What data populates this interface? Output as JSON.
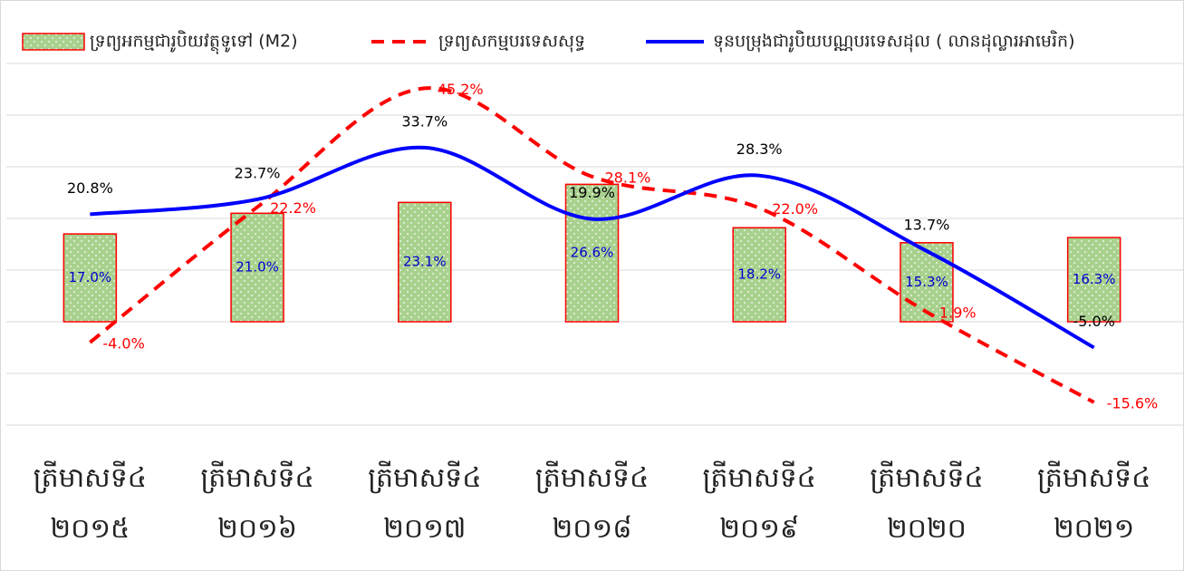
{
  "chart_data": {
    "type": "bar-line",
    "categories": [
      "ត្រីមាសទី៤ ២០១៥",
      "ត្រីមាសទី៤ ២០១៦",
      "ត្រីមាសទី៤ ២០១៧",
      "ត្រីមាសទី៤ ២០១៨",
      "ត្រីមាសទី៤ ២០១៩",
      "ត្រីមាសទី៤ ២០២០",
      "ត្រីមាសទី៤ ២០២១"
    ],
    "series": [
      {
        "name": "ទ្រព្យអកម្មជារូបិយវត្ថុទូទៅ (M2)",
        "type": "bar",
        "color": "#a9d18e",
        "edge_color": "#ff0000",
        "label_color": "#0000cc",
        "values": [
          17.0,
          21.0,
          23.1,
          26.6,
          18.2,
          15.3,
          16.3
        ],
        "value_labels": [
          "17.0%",
          "21.0%",
          "23.1%",
          "26.6%",
          "18.2%",
          "15.3%",
          "16.3%"
        ]
      },
      {
        "name": "ទ្រព្យសកម្មបរទេសសុទ្ធ",
        "type": "line",
        "dashed": true,
        "color": "#ff0000",
        "label_color": "#ff0000",
        "values": [
          -4.0,
          22.2,
          45.2,
          28.1,
          22.0,
          1.9,
          -15.6
        ],
        "value_labels": [
          "-4.0%",
          "22.2%",
          "45.2%",
          "28.1%",
          "22.0%",
          "1.9%",
          "-15.6%"
        ]
      },
      {
        "name": "ទុនបម្រុងជារូបិយបណ្ណបរទេសដុល ( លានដុល្លារអាមេរិក)",
        "type": "line",
        "dashed": false,
        "color": "#0000ff",
        "label_color": "#000000",
        "values": [
          20.8,
          23.7,
          33.7,
          19.9,
          28.3,
          13.7,
          -5.0
        ],
        "value_labels": [
          "20.8%",
          "23.7%",
          "33.7%",
          "19.9%",
          "28.3%",
          "13.7%",
          "-5.0%"
        ]
      }
    ],
    "ylim": [
      -20,
      50
    ],
    "yticks": [
      -20,
      -10,
      0,
      10,
      20,
      30,
      40,
      50
    ],
    "grid": true,
    "legend": "top"
  }
}
